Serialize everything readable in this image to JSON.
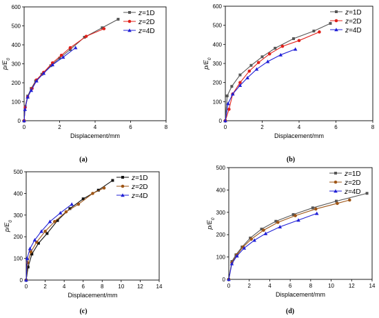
{
  "chart_data": [
    {
      "type": "line",
      "panel_label": "(a)",
      "xlabel": "Displacement/mm",
      "ylabel": "p/E0",
      "xlim": [
        0,
        8
      ],
      "ylim": [
        0,
        600
      ],
      "xticks": [
        0,
        2,
        4,
        6,
        8
      ],
      "yticks": [
        0,
        100,
        200,
        300,
        400,
        500,
        600
      ],
      "legend_position": "top-right",
      "series": [
        {
          "name": "z=1D",
          "color": "#555555",
          "marker": "square",
          "x": [
            0,
            0.06,
            0.2,
            0.4,
            0.65,
            1.0,
            1.5,
            2.0,
            2.6,
            3.4,
            4.4,
            5.3
          ],
          "y": [
            0,
            75,
            130,
            170,
            210,
            245,
            290,
            330,
            375,
            440,
            490,
            535
          ]
        },
        {
          "name": "z=2D",
          "color": "#e0201a",
          "marker": "circle",
          "x": [
            0,
            0.06,
            0.2,
            0.45,
            0.7,
            1.1,
            1.6,
            2.1,
            2.6,
            3.5,
            4.5
          ],
          "y": [
            0,
            70,
            125,
            170,
            215,
            255,
            305,
            345,
            385,
            445,
            485
          ]
        },
        {
          "name": "z=4D",
          "color": "#1f1fd6",
          "marker": "triangle",
          "x": [
            0,
            0.05,
            0.2,
            0.4,
            0.7,
            1.1,
            1.6,
            2.2,
            2.9
          ],
          "y": [
            0,
            60,
            125,
            160,
            210,
            250,
            295,
            335,
            385
          ]
        }
      ]
    },
    {
      "type": "line",
      "panel_label": "(b)",
      "xlabel": "Displacement/mm",
      "ylabel": "p/E0",
      "xlim": [
        0,
        8
      ],
      "ylim": [
        0,
        600
      ],
      "xticks": [
        0,
        2,
        4,
        6,
        8
      ],
      "yticks": [
        0,
        100,
        200,
        300,
        400,
        500,
        600
      ],
      "legend_position": "top-right",
      "series": [
        {
          "name": "z=1D",
          "color": "#555555",
          "marker": "square",
          "x": [
            0,
            0.1,
            0.35,
            0.8,
            1.4,
            2.0,
            2.7,
            3.7,
            4.8,
            5.7
          ],
          "y": [
            0,
            130,
            180,
            240,
            290,
            335,
            380,
            430,
            470,
            510
          ]
        },
        {
          "name": "z=2D",
          "color": "#e0201a",
          "marker": "circle",
          "x": [
            0,
            0.2,
            0.4,
            0.8,
            1.3,
            1.8,
            2.4,
            3.1,
            4.0,
            5.1
          ],
          "y": [
            0,
            60,
            140,
            200,
            260,
            305,
            350,
            390,
            420,
            465
          ]
        },
        {
          "name": "z=4D",
          "color": "#1f1fd6",
          "marker": "triangle",
          "x": [
            0,
            0.15,
            0.4,
            0.8,
            1.2,
            1.7,
            2.3,
            3.0,
            3.8
          ],
          "y": [
            0,
            90,
            140,
            185,
            225,
            270,
            310,
            345,
            375
          ]
        }
      ]
    },
    {
      "type": "line",
      "panel_label": "(c)",
      "xlabel": "Displacement/mm",
      "ylabel": "p/E0",
      "xlim": [
        0,
        14
      ],
      "ylim": [
        0,
        500
      ],
      "xticks": [
        0,
        2,
        4,
        6,
        8,
        10,
        12,
        14
      ],
      "yticks": [
        0,
        100,
        200,
        300,
        400,
        500
      ],
      "legend_position": "top-right",
      "series": [
        {
          "name": "z=1D",
          "color": "#111111",
          "marker": "square",
          "x": [
            0,
            0.2,
            0.6,
            1.3,
            2.2,
            3.3,
            4.6,
            6.0,
            7.6,
            9.1
          ],
          "y": [
            0,
            60,
            120,
            170,
            215,
            275,
            330,
            375,
            415,
            460
          ]
        },
        {
          "name": "z=2D",
          "color": "#9e5516",
          "marker": "circle",
          "x": [
            0,
            0.15,
            0.5,
            1.1,
            2.0,
            3.0,
            4.2,
            5.5,
            7.0,
            8.2
          ],
          "y": [
            0,
            80,
            130,
            175,
            225,
            270,
            315,
            350,
            400,
            425
          ]
        },
        {
          "name": "z=4D",
          "color": "#1f1fd6",
          "marker": "triangle",
          "x": [
            0,
            0.1,
            0.4,
            0.9,
            1.6,
            2.5,
            3.6,
            4.8
          ],
          "y": [
            0,
            100,
            145,
            185,
            225,
            270,
            310,
            350
          ]
        }
      ]
    },
    {
      "type": "line",
      "panel_label": "(d)",
      "xlabel": "Displacement/mm",
      "ylabel": "p/E0",
      "xlim": [
        0,
        14
      ],
      "ylim": [
        0,
        500
      ],
      "xticks": [
        0,
        2,
        4,
        6,
        8,
        10,
        12,
        14
      ],
      "yticks": [
        0,
        100,
        200,
        300,
        400,
        500
      ],
      "legend_position": "top-right",
      "series": [
        {
          "name": "z=1D",
          "color": "#555555",
          "marker": "square",
          "x": [
            0,
            0.3,
            0.7,
            1.3,
            2.1,
            3.2,
            4.6,
            6.3,
            8.2,
            10.5,
            13.5
          ],
          "y": [
            0,
            80,
            110,
            145,
            185,
            225,
            260,
            290,
            320,
            350,
            385
          ]
        },
        {
          "name": "z=2D",
          "color": "#9e5516",
          "marker": "circle",
          "x": [
            0,
            0.3,
            0.8,
            1.4,
            2.2,
            3.4,
            4.8,
            6.5,
            8.5,
            10.6,
            11.8
          ],
          "y": [
            0,
            75,
            110,
            145,
            180,
            220,
            255,
            285,
            315,
            340,
            355
          ]
        },
        {
          "name": "z=4D",
          "color": "#1f1fd6",
          "marker": "triangle",
          "x": [
            0,
            0.3,
            0.8,
            1.5,
            2.5,
            3.6,
            5.0,
            6.8,
            8.6
          ],
          "y": [
            0,
            70,
            105,
            140,
            175,
            205,
            235,
            265,
            295
          ]
        }
      ]
    }
  ]
}
